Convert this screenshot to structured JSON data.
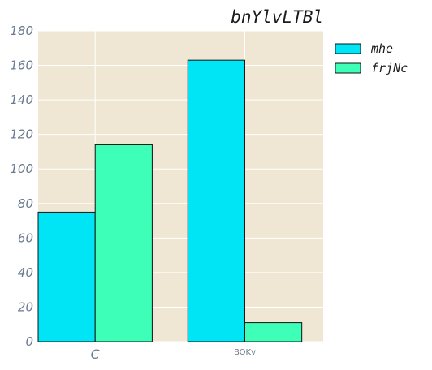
{
  "chart_data": {
    "type": "bar",
    "title": "bnYlvLTBl",
    "categories": [
      "C",
      "BOKv"
    ],
    "series": [
      {
        "name": "mhe",
        "values": [
          75,
          163
        ],
        "color": "#00e5f5"
      },
      {
        "name": "frjNc",
        "values": [
          114,
          11
        ],
        "color": "#3dffb8"
      }
    ],
    "xlabel": "",
    "ylabel": "",
    "ylim": [
      0,
      180
    ],
    "yticks": [
      0,
      20,
      40,
      60,
      80,
      100,
      120,
      140,
      160,
      180
    ],
    "grid": true,
    "legend": "outside-top-right",
    "background": "#efe7d3"
  }
}
